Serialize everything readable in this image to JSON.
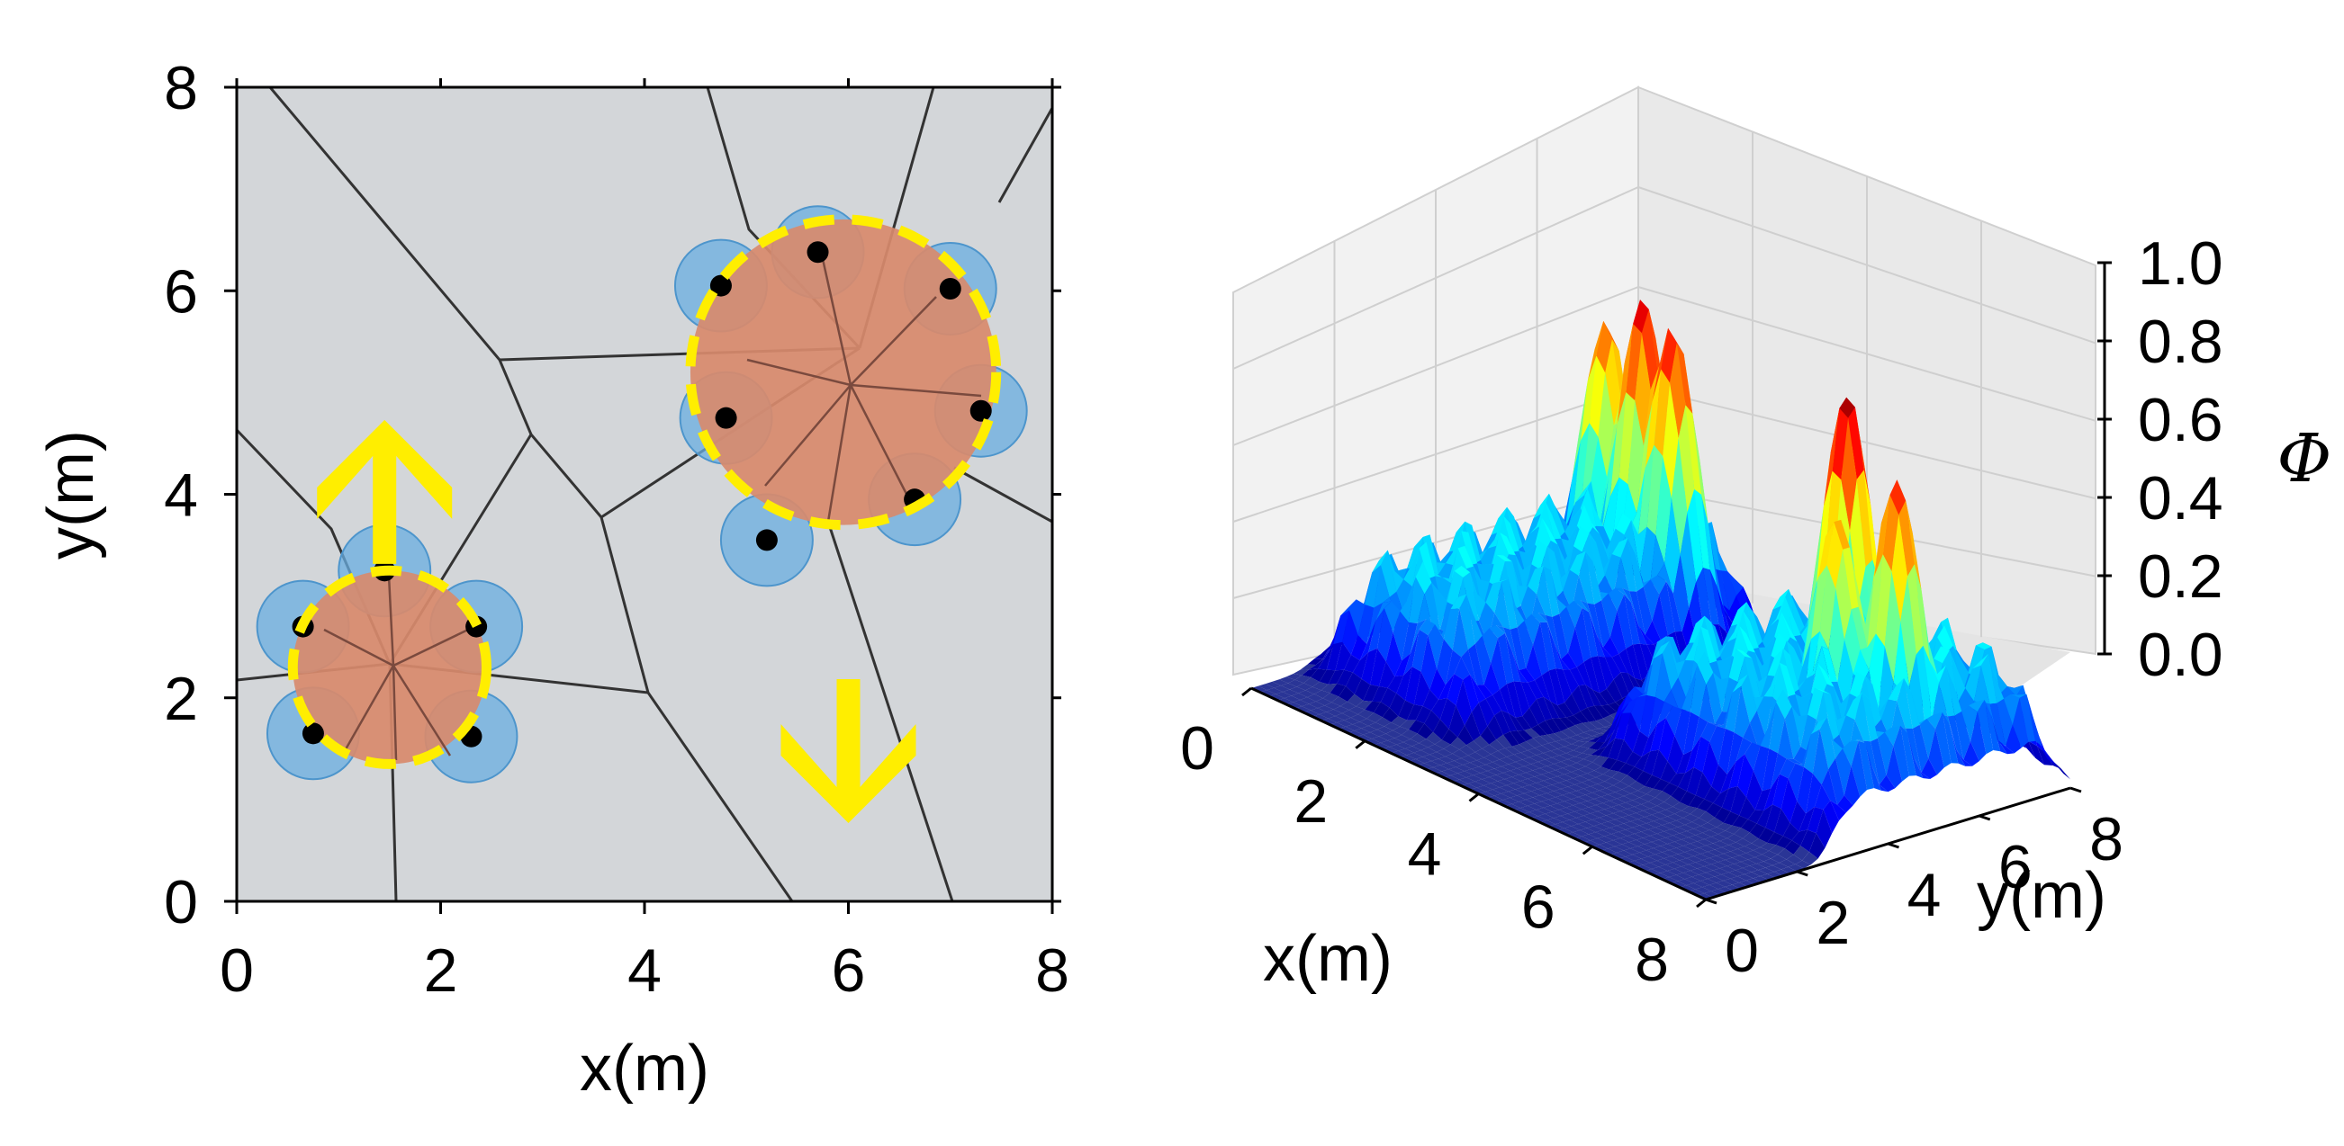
{
  "chart_data": [
    {
      "type": "scatter",
      "title": "",
      "xlabel": "x(m)",
      "ylabel": "y(m)",
      "xlim": [
        0,
        8
      ],
      "ylim": [
        0,
        8
      ],
      "xticks": [
        "0",
        "2",
        "4",
        "6",
        "8"
      ],
      "yticks": [
        "0",
        "2",
        "4",
        "6",
        "8"
      ],
      "grid": false,
      "background_color": "#d3d6d9",
      "robots": [
        {
          "x": 1.45,
          "y": 3.25
        },
        {
          "x": 0.65,
          "y": 2.7
        },
        {
          "x": 2.35,
          "y": 2.7
        },
        {
          "x": 0.75,
          "y": 1.65
        },
        {
          "x": 2.3,
          "y": 1.62
        },
        {
          "x": 5.7,
          "y": 6.38
        },
        {
          "x": 4.75,
          "y": 6.05
        },
        {
          "x": 7.0,
          "y": 6.02
        },
        {
          "x": 4.8,
          "y": 4.75
        },
        {
          "x": 7.3,
          "y": 4.82
        },
        {
          "x": 6.65,
          "y": 3.95
        },
        {
          "x": 5.2,
          "y": 3.55
        }
      ],
      "robot_radius_m": 0.45,
      "groups": [
        {
          "cx": 1.5,
          "cy": 2.3,
          "r": 0.95
        },
        {
          "cx": 5.95,
          "cy": 5.2,
          "r": 1.5
        }
      ],
      "arrows": [
        {
          "x": 1.45,
          "y": 4.2,
          "direction": "up"
        },
        {
          "x": 6.0,
          "y": 1.3,
          "direction": "down"
        }
      ],
      "colors": {
        "robot": "#000000",
        "robot_disc": "#6aaee0",
        "group_fill": "#d88a6c",
        "group_outline": "#ffee00",
        "arrow": "#ffee00",
        "voronoi_edges": "#333333"
      }
    },
    {
      "type": "surface",
      "title": "",
      "xlabel": "x(m)",
      "ylabel": "y(m)",
      "zlabel": "Φ",
      "xlim": [
        0,
        8
      ],
      "ylim": [
        0,
        8
      ],
      "zlim": [
        0,
        1
      ],
      "xticks": [
        "0",
        "2",
        "4",
        "6",
        "8"
      ],
      "yticks": [
        "0",
        "2",
        "4",
        "6",
        "8"
      ],
      "zticks": [
        "0.0",
        "0.2",
        "0.4",
        "0.6",
        "0.8",
        "1.0"
      ],
      "colormap": "jet",
      "regions": [
        {
          "x_range": [
            0.3,
            2.7
          ],
          "y_range": [
            1.3,
            7.7
          ],
          "plateau": 0.42
        },
        {
          "x_range": [
            4.1,
            8.0
          ],
          "y_range": [
            2.8,
            7.7
          ],
          "plateau": 0.42
        }
      ],
      "peaks": [
        {
          "x": 0.8,
          "y": 6.8,
          "z": 0.82
        },
        {
          "x": 1.6,
          "y": 6.6,
          "z": 0.95
        },
        {
          "x": 2.2,
          "y": 6.5,
          "z": 0.92
        },
        {
          "x": 5.6,
          "y": 6.1,
          "z": 1.0
        },
        {
          "x": 6.3,
          "y": 5.0,
          "z": 0.75
        },
        {
          "x": 6.95,
          "y": 5.5,
          "z": 0.88
        }
      ]
    }
  ]
}
